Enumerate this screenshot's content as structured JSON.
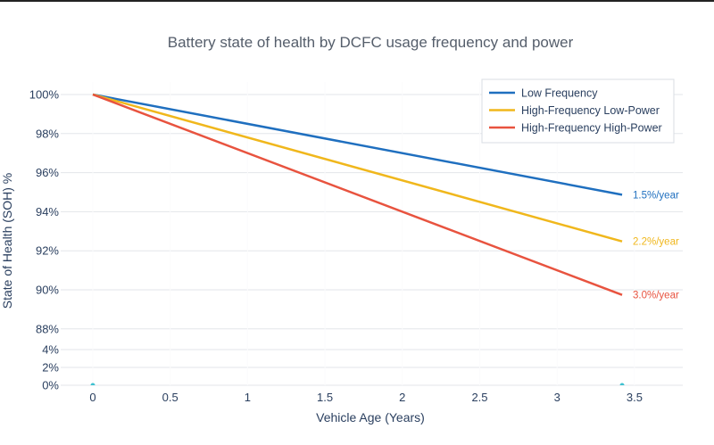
{
  "chart_data": {
    "type": "line",
    "title": "Battery state of health by DCFC usage frequency and power",
    "xlabel": "Vehicle Age (Years)",
    "ylabel": "State of Health (SOH) %",
    "xlim": [
      -0.15,
      3.8
    ],
    "x_ticks": [
      "0",
      "0.5",
      "1",
      "1.5",
      "2",
      "2.5",
      "3",
      "3.5"
    ],
    "x_tick_values": [
      0,
      0.5,
      1,
      1.5,
      2,
      2.5,
      3,
      3.5
    ],
    "y_ticks": [
      "100%",
      "98%",
      "96%",
      "94%",
      "92%",
      "90%",
      "88%",
      "4%",
      "2%",
      "0%"
    ],
    "y_tick_values": [
      100,
      98,
      96,
      94,
      92,
      90,
      88,
      4,
      2,
      0
    ],
    "y_axis_broken": true,
    "grid": true,
    "legend_placement": "top-right",
    "series": [
      {
        "name": "Low Frequency",
        "color": "#1f6fbf",
        "x": [
          0,
          3.42
        ],
        "y": [
          100,
          94.87
        ],
        "annotation": "1.5%/year"
      },
      {
        "name": "High-Frequency Low-Power",
        "color": "#f0b71c",
        "x": [
          0,
          3.42
        ],
        "y": [
          100,
          92.48
        ],
        "annotation": "2.2%/year"
      },
      {
        "name": "High-Frequency High-Power",
        "color": "#e8533f",
        "x": [
          0,
          3.42
        ],
        "y": [
          100,
          89.74
        ],
        "annotation": "3.0%/year"
      }
    ],
    "markers": {
      "color": "#3fc1d0",
      "x": [
        0,
        3.42
      ],
      "y": [
        0,
        0
      ]
    }
  }
}
